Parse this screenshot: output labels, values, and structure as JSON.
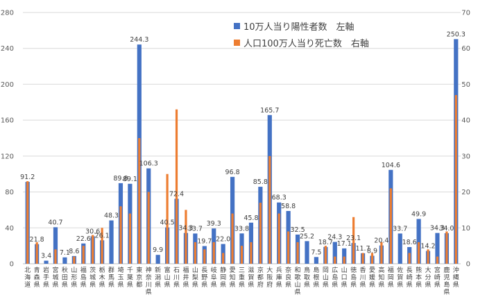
{
  "chart_data": {
    "type": "bar",
    "title": "",
    "categories": [
      "北海道",
      "青森県",
      "岩手県",
      "宮城県",
      "秋田県",
      "山形県",
      "福島県",
      "茨城県",
      "栃木県",
      "群馬県",
      "埼玉県",
      "千葉県",
      "東京都",
      "神奈川県",
      "新潟県",
      "富山県",
      "石川県",
      "福井県",
      "山梨県",
      "長野県",
      "岐阜県",
      "静岡県",
      "愛知県",
      "三重県",
      "滋賀県",
      "京都府",
      "大阪府",
      "兵庫県",
      "奈良県",
      "和歌山県",
      "鳥取県",
      "島根県",
      "岡山県",
      "広島県",
      "山口県",
      "徳島県",
      "香川県",
      "愛媛県",
      "高知県",
      "福岡県",
      "佐賀県",
      "長崎県",
      "熊本県",
      "大分県",
      "宮崎県",
      "鹿児島県",
      "沖縄県"
    ],
    "series": [
      {
        "name": "10万人当り陽性者数　左軸",
        "axis": "left",
        "color": "#4472c4",
        "values": [
          91.2,
          21.8,
          3.4,
          40.7,
          7.1,
          8.6,
          22.6,
          30.6,
          26.1,
          48.3,
          89.8,
          89.1,
          244.3,
          106.3,
          9.9,
          40.5,
          72.4,
          34.3,
          33.7,
          19.7,
          39.3,
          22.0,
          96.8,
          33.8,
          45.8,
          85.8,
          165.7,
          68.3,
          58.8,
          32.5,
          25.2,
          7.5,
          18.7,
          24.3,
          17.1,
          23.1,
          11.7,
          8.9,
          20.4,
          104.6,
          33.7,
          18.6,
          49.9,
          14.2,
          34.3,
          34.0,
          250.3
        ]
      },
      {
        "name": "人口100万人当り死亡数　右軸",
        "axis": "right",
        "color": "#ed7d31",
        "values": [
          23,
          6,
          0,
          4,
          0,
          2,
          5,
          8,
          10,
          0,
          16,
          14,
          35,
          20,
          0,
          25,
          43,
          15,
          6,
          4,
          6,
          3,
          14,
          5,
          6,
          17,
          30,
          14,
          9,
          6,
          0,
          0,
          5,
          2,
          2,
          13,
          3,
          3,
          6,
          21,
          0,
          3,
          6,
          4,
          2,
          9,
          47
        ]
      }
    ],
    "ylim_left": [
      0,
      280
    ],
    "yticks_left": [
      "0",
      "40",
      "80",
      "120",
      "160",
      "200",
      "240",
      "280"
    ],
    "ylim_right": [
      0,
      70
    ],
    "yticks_right": [
      "0",
      "10",
      "20",
      "30",
      "40",
      "50",
      "60",
      "70"
    ],
    "legend_position": "top-right",
    "grid": true
  }
}
